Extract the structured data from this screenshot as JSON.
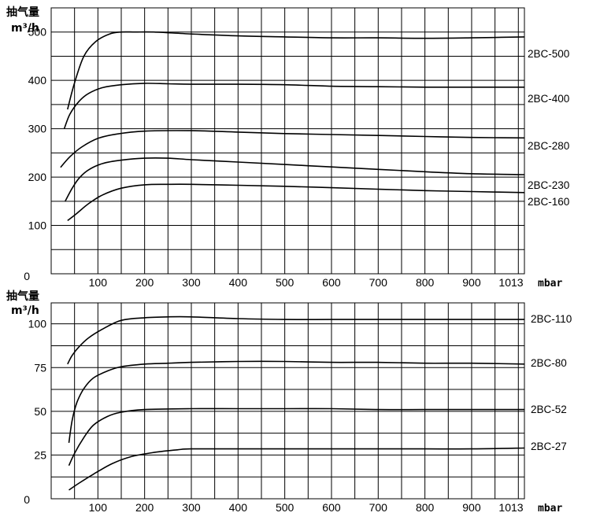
{
  "chart_data": [
    {
      "type": "line",
      "title": "",
      "ylabel_line1": "抽气量",
      "ylabel_line2": "m³/h",
      "x_unit": "mbar",
      "xlim": [
        0,
        1013
      ],
      "ylim": [
        0,
        550
      ],
      "x_ticks": [
        100,
        200,
        300,
        400,
        500,
        600,
        700,
        800,
        900,
        1013
      ],
      "y_ticks": [
        0,
        100,
        200,
        300,
        400,
        500
      ],
      "grid": true,
      "series": [
        {
          "name": "2BC-500",
          "points": [
            [
              35,
              340
            ],
            [
              50,
              395
            ],
            [
              70,
              450
            ],
            [
              95,
              480
            ],
            [
              125,
              496
            ],
            [
              150,
              500
            ],
            [
              180,
              500
            ],
            [
              220,
              500
            ],
            [
              300,
              496
            ],
            [
              400,
              492
            ],
            [
              500,
              490
            ],
            [
              600,
              488
            ],
            [
              700,
              488
            ],
            [
              800,
              487
            ],
            [
              900,
              488
            ],
            [
              1013,
              490
            ]
          ]
        },
        {
          "name": "2BC-400",
          "points": [
            [
              28,
              300
            ],
            [
              40,
              330
            ],
            [
              60,
              357
            ],
            [
              80,
              373
            ],
            [
              110,
              385
            ],
            [
              150,
              391
            ],
            [
              200,
              394
            ],
            [
              250,
              393
            ],
            [
              300,
              392
            ],
            [
              400,
              392
            ],
            [
              500,
              391
            ],
            [
              600,
              388
            ],
            [
              700,
              387
            ],
            [
              800,
              386
            ],
            [
              900,
              386
            ],
            [
              1013,
              386
            ]
          ]
        },
        {
          "name": "2BC-280",
          "points": [
            [
              20,
              220
            ],
            [
              40,
              242
            ],
            [
              65,
              262
            ],
            [
              100,
              280
            ],
            [
              140,
              289
            ],
            [
              200,
              295
            ],
            [
              300,
              296
            ],
            [
              400,
              293
            ],
            [
              500,
              290
            ],
            [
              600,
              288
            ],
            [
              700,
              286
            ],
            [
              800,
              284
            ],
            [
              900,
              282
            ],
            [
              1013,
              281
            ]
          ]
        },
        {
          "name": "2BC-230",
          "points": [
            [
              30,
              150
            ],
            [
              45,
              177
            ],
            [
              60,
              198
            ],
            [
              80,
              215
            ],
            [
              110,
              228
            ],
            [
              150,
              235
            ],
            [
              200,
              239
            ],
            [
              250,
              239
            ],
            [
              300,
              236
            ],
            [
              400,
              231
            ],
            [
              500,
              226
            ],
            [
              600,
              221
            ],
            [
              700,
              216
            ],
            [
              800,
              211
            ],
            [
              900,
              207
            ],
            [
              1013,
              205
            ]
          ]
        },
        {
          "name": "2BC-160",
          "points": [
            [
              35,
              110
            ],
            [
              55,
              125
            ],
            [
              80,
              145
            ],
            [
              110,
              163
            ],
            [
              150,
              177
            ],
            [
              200,
              184
            ],
            [
              250,
              185
            ],
            [
              300,
              185
            ],
            [
              400,
              183
            ],
            [
              500,
              181
            ],
            [
              600,
              178
            ],
            [
              700,
              175
            ],
            [
              800,
              172
            ],
            [
              900,
              170
            ],
            [
              1013,
              168
            ]
          ]
        }
      ],
      "series_labels": [
        "2BC-500",
        "2BC-400",
        "2BC-280",
        "2BC-230",
        "2BC-160"
      ]
    },
    {
      "type": "line",
      "title": "",
      "ylabel_line1": "抽气量",
      "ylabel_line2": "m³/h",
      "x_unit": "mbar",
      "xlim": [
        0,
        1013
      ],
      "ylim": [
        0,
        112
      ],
      "x_ticks": [
        100,
        200,
        300,
        400,
        500,
        600,
        700,
        800,
        900,
        1013
      ],
      "y_ticks": [
        0,
        25,
        50,
        75,
        100
      ],
      "grid": true,
      "series": [
        {
          "name": "2BC-110",
          "points": [
            [
              35,
              77
            ],
            [
              45,
              82
            ],
            [
              60,
              87
            ],
            [
              80,
              92
            ],
            [
              110,
              97
            ],
            [
              150,
              102
            ],
            [
              200,
              103.5
            ],
            [
              250,
              104
            ],
            [
              300,
              104
            ],
            [
              400,
              103
            ],
            [
              500,
              102.5
            ],
            [
              600,
              102.5
            ],
            [
              700,
              102.5
            ],
            [
              800,
              102.5
            ],
            [
              900,
              102.5
            ],
            [
              1013,
              102.5
            ]
          ]
        },
        {
          "name": "2BC-80",
          "points": [
            [
              38,
              32
            ],
            [
              45,
              45
            ],
            [
              55,
              55
            ],
            [
              70,
              63
            ],
            [
              90,
              69
            ],
            [
              120,
              73
            ],
            [
              150,
              75.5
            ],
            [
              200,
              77
            ],
            [
              250,
              77.5
            ],
            [
              300,
              78
            ],
            [
              400,
              78.5
            ],
            [
              500,
              78.5
            ],
            [
              600,
              78
            ],
            [
              700,
              78
            ],
            [
              800,
              77.5
            ],
            [
              900,
              77.5
            ],
            [
              1013,
              77
            ]
          ]
        },
        {
          "name": "2BC-52",
          "points": [
            [
              38,
              19
            ],
            [
              50,
              26
            ],
            [
              70,
              35
            ],
            [
              90,
              42
            ],
            [
              120,
              47
            ],
            [
              150,
              49.5
            ],
            [
              200,
              51
            ],
            [
              300,
              51.5
            ],
            [
              400,
              51.5
            ],
            [
              500,
              51.5
            ],
            [
              600,
              51.5
            ],
            [
              700,
              51
            ],
            [
              800,
              51
            ],
            [
              900,
              51
            ],
            [
              1013,
              51
            ]
          ]
        },
        {
          "name": "2BC-27",
          "points": [
            [
              38,
              5
            ],
            [
              60,
              9
            ],
            [
              90,
              14
            ],
            [
              130,
              20
            ],
            [
              170,
              24
            ],
            [
              220,
              26.5
            ],
            [
              270,
              28
            ],
            [
              300,
              28.5
            ],
            [
              400,
              28.5
            ],
            [
              500,
              28.5
            ],
            [
              600,
              28.5
            ],
            [
              700,
              28.5
            ],
            [
              800,
              28.5
            ],
            [
              900,
              28.5
            ],
            [
              1013,
              29
            ]
          ]
        }
      ],
      "series_labels": [
        "2BC-110",
        "2BC-80",
        "2BC-52",
        "2BC-27"
      ]
    }
  ]
}
